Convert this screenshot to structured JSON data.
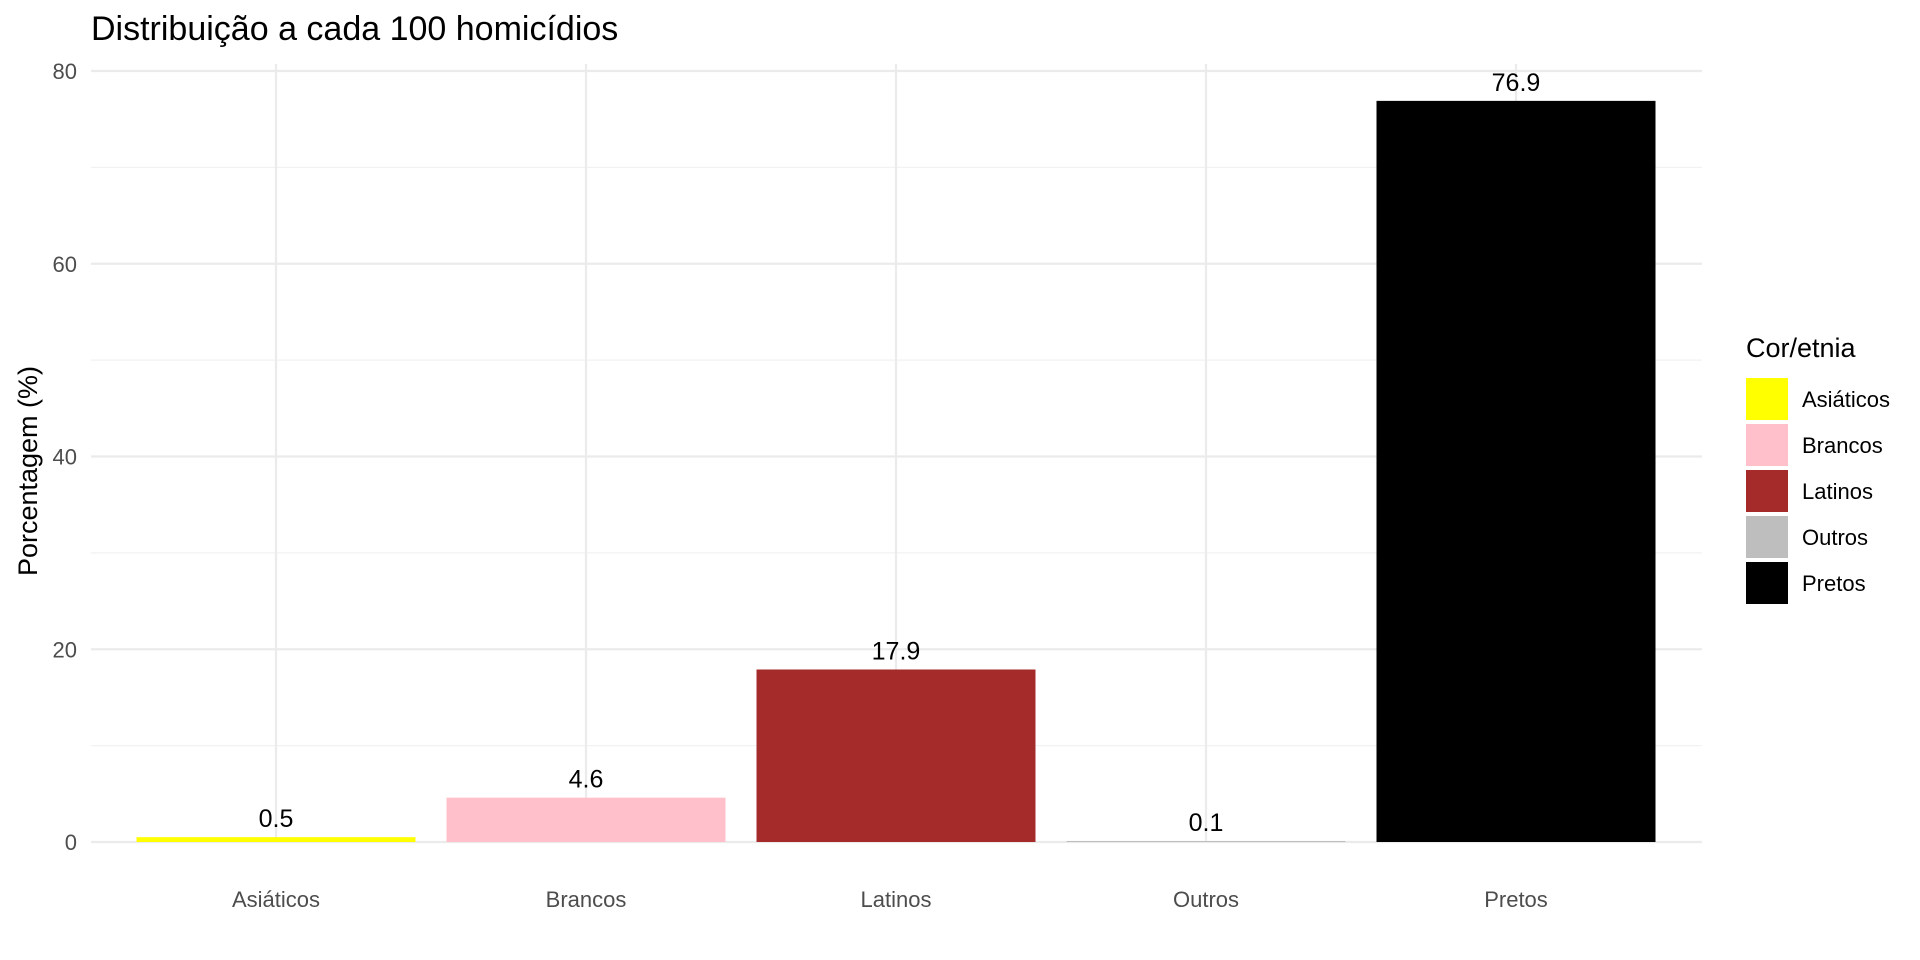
{
  "chart_data": {
    "type": "bar",
    "title": "Distribuição a cada 100 homicídios",
    "xlabel": "",
    "ylabel": "Porcentagem (%)",
    "categories": [
      "Asiáticos",
      "Brancos",
      "Latinos",
      "Outros",
      "Pretos"
    ],
    "values": [
      0.5,
      4.6,
      17.9,
      0.1,
      76.9
    ],
    "data_labels": [
      "0.5",
      "4.6",
      "17.9",
      "0.1",
      "76.9"
    ],
    "colors": [
      "#ffff00",
      "#ffc0cb",
      "#a52a2a",
      "#bebebe",
      "#000000"
    ],
    "ylim": [
      0,
      80
    ],
    "yticks": [
      0,
      20,
      40,
      60,
      80
    ],
    "ytick_labels": [
      "0",
      "20",
      "40",
      "60",
      "80"
    ],
    "grid": true,
    "legend": {
      "title": "Cor/etnia",
      "placement": "right",
      "entries": [
        "Asiáticos",
        "Brancos",
        "Latinos",
        "Outros",
        "Pretos"
      ]
    }
  }
}
